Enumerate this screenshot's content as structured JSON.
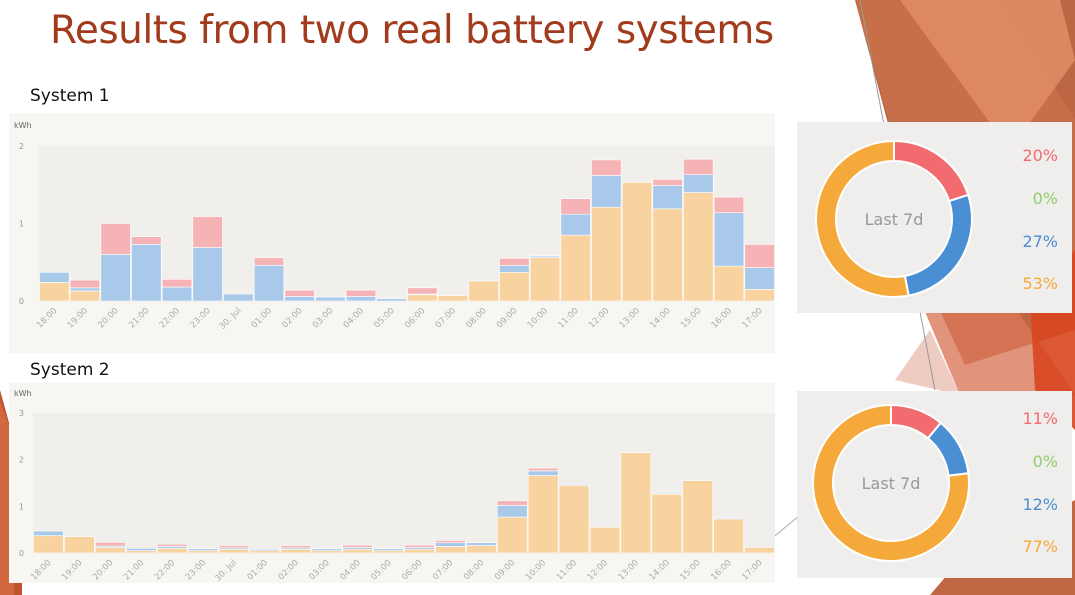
{
  "slide": {
    "title": "Results from two real battery systems"
  },
  "colors": {
    "red": "#f6b3b6",
    "blue": "#a8c9ea",
    "orange": "#f8d39f",
    "pie_red": "#f26b6e",
    "pie_green": "#8fcf6d",
    "pie_blue": "#4a8fd4",
    "pie_orange": "#f6a93b"
  },
  "chart_data": [
    {
      "type": "bar",
      "title": "System 1",
      "ylabel": "kWh",
      "ylim": [
        0,
        2
      ],
      "yticks": [
        "0",
        "1",
        "2"
      ],
      "categories": [
        "18:00",
        "19:00",
        "20:00",
        "21:00",
        "22:00",
        "23:00",
        "30. Jul",
        "01:00",
        "02:00",
        "03:00",
        "04:00",
        "05:00",
        "06:00",
        "07:00",
        "08:00",
        "09:00",
        "10:00",
        "11:00",
        "12:00",
        "13:00",
        "14:00",
        "15:00",
        "16:00",
        "17:00"
      ],
      "series": [
        {
          "name": "orange",
          "values": [
            0.24,
            0.13,
            0,
            0,
            0,
            0,
            0,
            0,
            0,
            0,
            0,
            0,
            0.08,
            0.07,
            0.26,
            0.37,
            0.56,
            0.85,
            1.21,
            1.53,
            1.19,
            1.4,
            0.45,
            0.15
          ]
        },
        {
          "name": "blue",
          "values": [
            0.13,
            0.04,
            0.6,
            0.73,
            0.18,
            0.69,
            0.09,
            0.46,
            0.06,
            0.05,
            0.06,
            0.03,
            0.01,
            0,
            0.01,
            0.09,
            0.02,
            0.27,
            0.41,
            0,
            0.3,
            0.23,
            0.69,
            0.28
          ]
        },
        {
          "name": "red",
          "values": [
            0,
            0.1,
            0.4,
            0.1,
            0.1,
            0.4,
            0,
            0.1,
            0.08,
            0,
            0.08,
            0,
            0.08,
            0,
            0,
            0.09,
            0.01,
            0.2,
            0.2,
            0,
            0.08,
            0.2,
            0.2,
            0.3
          ]
        }
      ],
      "pie": {
        "label": "Last 7d",
        "slices": [
          {
            "label": "20%",
            "value": 20
          },
          {
            "label": "0%",
            "value": 0
          },
          {
            "label": "27%",
            "value": 27
          },
          {
            "label": "53%",
            "value": 53
          }
        ]
      }
    },
    {
      "type": "bar",
      "title": "System 2",
      "ylabel": "kWh",
      "ylim": [
        0,
        3
      ],
      "yticks": [
        "0",
        "1",
        "2",
        "3"
      ],
      "categories": [
        "18:00",
        "19:00",
        "20:00",
        "21:00",
        "22:00",
        "23:00",
        "30. Jul",
        "01:00",
        "02:00",
        "03:00",
        "04:00",
        "05:00",
        "06:00",
        "07:00",
        "08:00",
        "09:00",
        "10:00",
        "11:00",
        "12:00",
        "13:00",
        "14:00",
        "15:00",
        "16:00",
        "17:00"
      ],
      "series": [
        {
          "name": "orange",
          "values": [
            0.37,
            0.35,
            0.12,
            0.05,
            0.1,
            0.05,
            0.08,
            0.05,
            0.08,
            0.05,
            0.08,
            0.05,
            0.08,
            0.14,
            0.16,
            0.77,
            1.66,
            1.45,
            0.55,
            2.15,
            1.26,
            1.55,
            0.73,
            0.12
          ]
        },
        {
          "name": "blue",
          "values": [
            0.1,
            0,
            0.03,
            0.05,
            0.04,
            0.04,
            0.03,
            0.03,
            0.03,
            0.04,
            0.04,
            0.04,
            0.04,
            0.08,
            0.06,
            0.25,
            0.1,
            0.02,
            0,
            0,
            0.02,
            0,
            0.02,
            0
          ]
        },
        {
          "name": "red",
          "values": [
            0,
            0,
            0.08,
            0,
            0.05,
            0,
            0.05,
            0,
            0.05,
            0,
            0.05,
            0,
            0.05,
            0.05,
            0,
            0.1,
            0.06,
            0,
            0,
            0,
            0,
            0,
            0,
            0
          ]
        }
      ],
      "pie": {
        "label": "Last 7d",
        "slices": [
          {
            "label": "11%",
            "value": 11
          },
          {
            "label": "0%",
            "value": 0
          },
          {
            "label": "12%",
            "value": 12
          },
          {
            "label": "77%",
            "value": 77
          }
        ]
      }
    }
  ]
}
